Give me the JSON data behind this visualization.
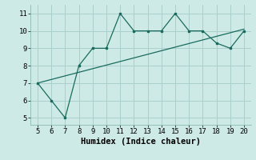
{
  "x": [
    5,
    6,
    7,
    8,
    9,
    10,
    11,
    12,
    13,
    14,
    15,
    16,
    17,
    18,
    19,
    20
  ],
  "y": [
    7,
    6,
    5,
    8,
    9,
    9,
    11,
    10,
    10,
    10,
    11,
    10,
    10,
    9.3,
    9,
    10
  ],
  "trend_x": [
    5,
    20
  ],
  "trend_y": [
    7.0,
    10.1
  ],
  "line_color": "#1a6b5e",
  "bg_color": "#cdeae6",
  "grid_color": "#aacfcc",
  "xlabel": "Humidex (Indice chaleur)",
  "xlim": [
    4.5,
    20.5
  ],
  "ylim": [
    4.6,
    11.5
  ],
  "xticks": [
    5,
    6,
    7,
    8,
    9,
    10,
    11,
    12,
    13,
    14,
    15,
    16,
    17,
    18,
    19,
    20
  ],
  "yticks": [
    5,
    6,
    7,
    8,
    9,
    10,
    11
  ],
  "tick_font_size": 6.5,
  "label_font_size": 7.5
}
